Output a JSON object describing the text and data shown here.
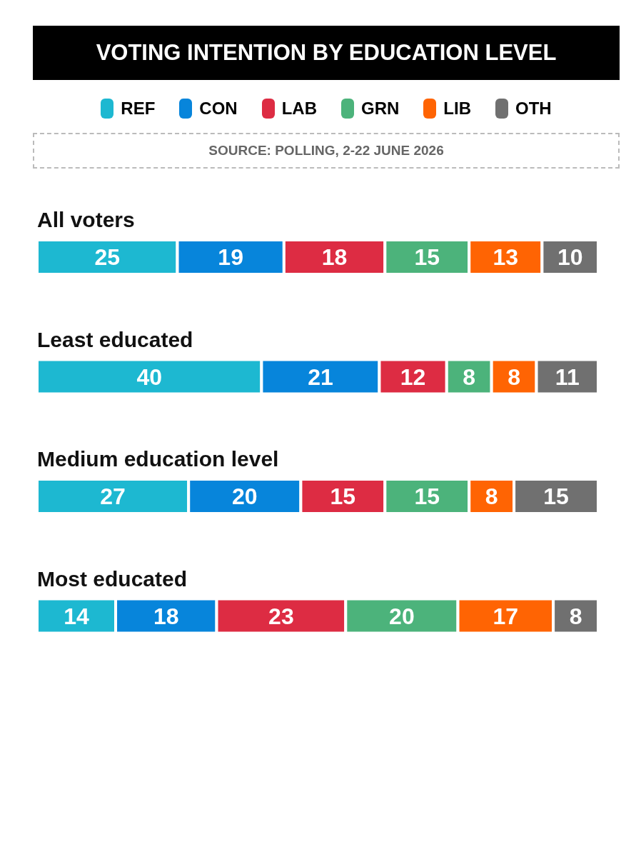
{
  "chart_data": {
    "type": "bar",
    "orientation": "horizontal",
    "stacked": true,
    "title": "VOTING INTENTION BY EDUCATION LEVEL",
    "annotations": [
      "SOURCE: POLLING, 2-22 JUNE 2026"
    ],
    "categories": [
      "All voters",
      "Least educated",
      "Medium education level",
      "Most educated"
    ],
    "series": [
      {
        "name": "REF",
        "color": "#1db8d1",
        "values": [
          25,
          40,
          27,
          14
        ]
      },
      {
        "name": "CON",
        "color": "#0785db",
        "values": [
          19,
          21,
          20,
          18
        ]
      },
      {
        "name": "LAB",
        "color": "#dd2c43",
        "values": [
          18,
          12,
          15,
          23
        ]
      },
      {
        "name": "GRN",
        "color": "#4cb37b",
        "values": [
          15,
          8,
          15,
          20
        ]
      },
      {
        "name": "LIB",
        "color": "#ff6403",
        "values": [
          13,
          8,
          8,
          17
        ]
      },
      {
        "name": "OTH",
        "color": "#707070",
        "values": [
          10,
          11,
          15,
          8
        ]
      }
    ],
    "tick_labels": false,
    "data_labels": true,
    "legend": "top",
    "grid": false
  }
}
